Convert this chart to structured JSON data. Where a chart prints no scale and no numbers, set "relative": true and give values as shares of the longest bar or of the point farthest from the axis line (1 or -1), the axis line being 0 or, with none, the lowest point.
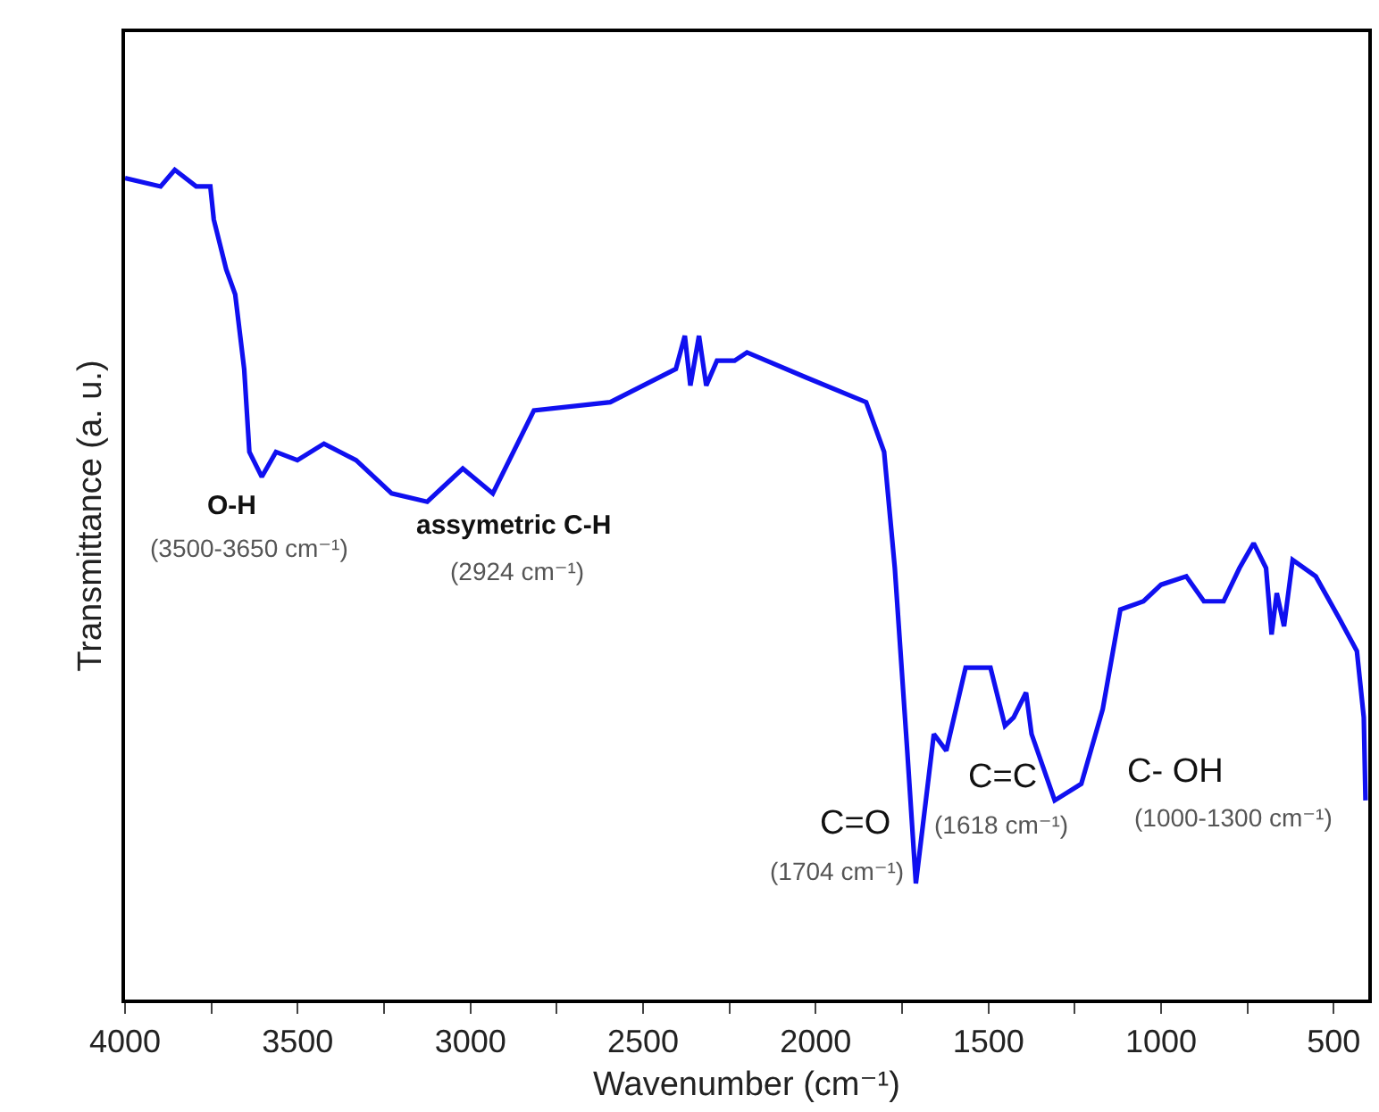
{
  "chart_data": {
    "type": "line",
    "relative": true,
    "xlabel": "Wavenumber (cm⁻¹)",
    "ylabel": "Transmittance (a. u.)",
    "xlim": [
      4000,
      400
    ],
    "xticks": [
      4000,
      {
        "value": 3750,
        "label": null
      },
      3500,
      {
        "value": 3250,
        "label": null
      },
      3000,
      {
        "value": 2750,
        "label": null
      },
      2500,
      {
        "value": 2250,
        "label": null
      },
      2000,
      {
        "value": 1750,
        "label": null
      },
      1500,
      {
        "value": 1250,
        "label": null
      },
      1000,
      {
        "value": 750,
        "label": null
      },
      500
    ],
    "marker": "none",
    "line_style": "solid",
    "series": [
      {
        "color": "#1010f0",
        "x": [
          4000,
          3897,
          3856,
          3794,
          3753,
          3743,
          3707,
          3681,
          3655,
          3640,
          3604,
          3563,
          3501,
          3424,
          3331,
          3228,
          3125,
          3022,
          2935,
          2816,
          2595,
          2405,
          2379,
          2363,
          2338,
          2317,
          2286,
          2235,
          2199,
          2029,
          1854,
          1802,
          1771,
          1735,
          1710,
          1684,
          1658,
          1622,
          1566,
          1494,
          1452,
          1427,
          1391,
          1375,
          1308,
          1231,
          1169,
          1118,
          1051,
          1000,
          927,
          876,
          819,
          773,
          732,
          696,
          680,
          665,
          644,
          619,
          552,
          485,
          433,
          413,
          408
        ],
        "values": [
          0.99,
          0.98,
          1.0,
          0.98,
          0.98,
          0.94,
          0.88,
          0.85,
          0.76,
          0.66,
          0.63,
          0.66,
          0.65,
          0.67,
          0.65,
          0.61,
          0.6,
          0.64,
          0.61,
          0.71,
          0.72,
          0.76,
          0.8,
          0.74,
          0.8,
          0.74,
          0.77,
          0.77,
          0.78,
          0.75,
          0.72,
          0.66,
          0.52,
          0.3,
          0.14,
          0.23,
          0.32,
          0.3,
          0.4,
          0.4,
          0.33,
          0.34,
          0.37,
          0.32,
          0.24,
          0.26,
          0.35,
          0.47,
          0.48,
          0.5,
          0.51,
          0.48,
          0.48,
          0.52,
          0.55,
          0.52,
          0.44,
          0.49,
          0.45,
          0.53,
          0.51,
          0.46,
          0.42,
          0.34,
          0.24
        ]
      }
    ],
    "annotations": [
      "O-H",
      "(3500-3650 cm⁻¹)",
      "assymetric C-H",
      "(2924 cm⁻¹)",
      "C=O",
      "(1704 cm⁻¹)",
      "C=C",
      "(1618 cm⁻¹)",
      "C- OH",
      "(1000-1300 cm⁻¹)"
    ]
  }
}
